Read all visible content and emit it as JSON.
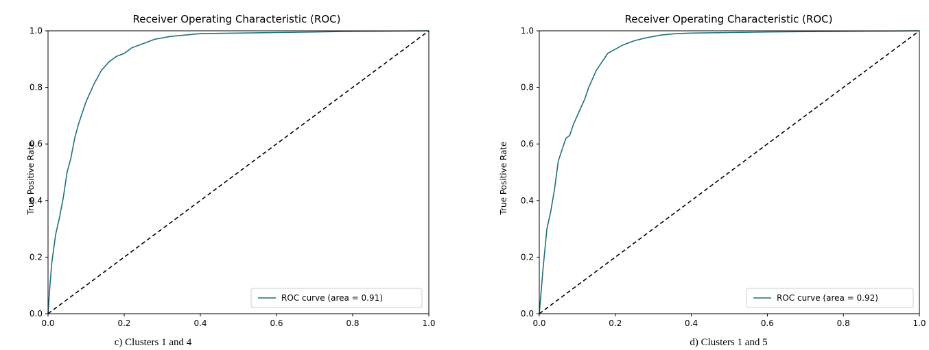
{
  "chart_data": [
    {
      "type": "line",
      "title": "Receiver Operating Characteristic (ROC)",
      "xlabel": "",
      "ylabel": "True Positive Rate",
      "xlim": [
        0,
        1
      ],
      "ylim": [
        0,
        1
      ],
      "x_ticks": [
        "0.0",
        "0.2",
        "0.4",
        "0.6",
        "0.8",
        "1.0"
      ],
      "y_ticks": [
        "0.0",
        "0.2",
        "0.4",
        "0.6",
        "0.8",
        "1.0"
      ],
      "legend_position": "lower-right",
      "caption": "c) Clusters 1 and 4",
      "series": [
        {
          "name": "ROC curve (area = 0.91)",
          "color": "#1f6f7f",
          "x": [
            0.0,
            0.005,
            0.01,
            0.02,
            0.03,
            0.04,
            0.05,
            0.06,
            0.07,
            0.08,
            0.09,
            0.1,
            0.12,
            0.14,
            0.16,
            0.18,
            0.2,
            0.22,
            0.25,
            0.28,
            0.32,
            0.36,
            0.4,
            0.5,
            0.6,
            0.7,
            0.8,
            0.9,
            1.0
          ],
          "y": [
            0.0,
            0.1,
            0.18,
            0.28,
            0.34,
            0.41,
            0.5,
            0.55,
            0.62,
            0.67,
            0.71,
            0.75,
            0.81,
            0.86,
            0.89,
            0.91,
            0.92,
            0.94,
            0.955,
            0.97,
            0.98,
            0.985,
            0.99,
            0.992,
            0.994,
            0.996,
            0.998,
            0.999,
            1.0
          ]
        },
        {
          "name": "",
          "color": "#000000",
          "dashed": true,
          "x": [
            0,
            1
          ],
          "y": [
            0,
            1
          ]
        }
      ]
    },
    {
      "type": "line",
      "title": "Receiver Operating Characteristic (ROC)",
      "xlabel": "",
      "ylabel": "True Positive Rate",
      "xlim": [
        0,
        1
      ],
      "ylim": [
        0,
        1
      ],
      "x_ticks": [
        "0.0",
        "0.2",
        "0.4",
        "0.6",
        "0.8",
        "1.0"
      ],
      "y_ticks": [
        "0.0",
        "0.2",
        "0.4",
        "0.6",
        "0.8",
        "1.0"
      ],
      "legend_position": "lower-right",
      "caption": "d) Clusters 1 and 5",
      "series": [
        {
          "name": "ROC curve (area = 0.92)",
          "color": "#1f6f7f",
          "x": [
            0.0,
            0.005,
            0.01,
            0.02,
            0.03,
            0.04,
            0.05,
            0.06,
            0.07,
            0.08,
            0.09,
            0.1,
            0.11,
            0.12,
            0.13,
            0.14,
            0.15,
            0.16,
            0.17,
            0.18,
            0.2,
            0.22,
            0.25,
            0.28,
            0.32,
            0.36,
            0.4,
            0.5,
            0.6,
            0.7,
            0.8,
            0.9,
            1.0
          ],
          "y": [
            0.0,
            0.08,
            0.16,
            0.3,
            0.36,
            0.44,
            0.54,
            0.58,
            0.62,
            0.63,
            0.67,
            0.7,
            0.73,
            0.76,
            0.8,
            0.83,
            0.86,
            0.88,
            0.9,
            0.92,
            0.935,
            0.95,
            0.965,
            0.975,
            0.985,
            0.99,
            0.992,
            0.994,
            0.996,
            0.997,
            0.998,
            0.999,
            1.0
          ]
        },
        {
          "name": "",
          "color": "#000000",
          "dashed": true,
          "x": [
            0,
            1
          ],
          "y": [
            0,
            1
          ]
        }
      ]
    }
  ]
}
